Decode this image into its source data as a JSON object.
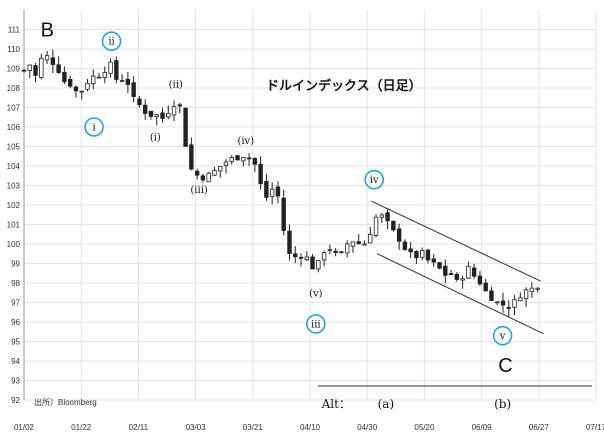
{
  "chart_data": {
    "type": "candlestick",
    "title": "ドルインデックス（日足）",
    "source_note": "出所）Bloomberg",
    "xlabel": "",
    "ylabel": "",
    "ylim": [
      92,
      112
    ],
    "yticks": [
      92,
      93,
      94,
      95,
      96,
      97,
      98,
      99,
      100,
      101,
      102,
      103,
      104,
      105,
      106,
      107,
      108,
      109,
      110,
      111
    ],
    "xticks": [
      "01/02",
      "01/22",
      "02/11",
      "03/03",
      "03/21",
      "04/10",
      "04/30",
      "05/20",
      "06/09",
      "06/27",
      "07/17"
    ],
    "grid": true,
    "close_path": [
      [
        0,
        108.9
      ],
      [
        2,
        109.2
      ],
      [
        4,
        108.6
      ],
      [
        6,
        109.5
      ],
      [
        8,
        109.6
      ],
      [
        10,
        109.3
      ],
      [
        12,
        108.9
      ],
      [
        14,
        108.3
      ],
      [
        16,
        108.2
      ],
      [
        18,
        107.8
      ],
      [
        20,
        107.9
      ],
      [
        22,
        108.4
      ],
      [
        24,
        108.6
      ],
      [
        26,
        108.7
      ],
      [
        28,
        109.0
      ],
      [
        30,
        109.2
      ],
      [
        32,
        108.3
      ],
      [
        34,
        108.5
      ],
      [
        36,
        108.2
      ],
      [
        38,
        107.2
      ],
      [
        40,
        107.1
      ],
      [
        42,
        106.7
      ],
      [
        44,
        106.6
      ],
      [
        46,
        106.6
      ],
      [
        48,
        106.4
      ],
      [
        50,
        107.0
      ],
      [
        52,
        107.3
      ],
      [
        54,
        106.9
      ],
      [
        56,
        104.3
      ],
      [
        58,
        103.6
      ],
      [
        60,
        103.5
      ],
      [
        62,
        103.4
      ],
      [
        64,
        103.6
      ],
      [
        66,
        103.8
      ],
      [
        68,
        104.1
      ],
      [
        70,
        104.3
      ],
      [
        72,
        104.4
      ],
      [
        74,
        104.5
      ],
      [
        76,
        104.6
      ],
      [
        78,
        104.3
      ],
      [
        80,
        103.9
      ],
      [
        82,
        102.3
      ],
      [
        84,
        102.5
      ],
      [
        86,
        103.1
      ],
      [
        88,
        101.8
      ],
      [
        90,
        99.6
      ],
      [
        92,
        99.3
      ],
      [
        94,
        99.4
      ],
      [
        96,
        99.5
      ],
      [
        98,
        99.0
      ],
      [
        100,
        98.6
      ],
      [
        102,
        99.5
      ],
      [
        104,
        99.9
      ],
      [
        106,
        99.6
      ],
      [
        108,
        99.2
      ],
      [
        110,
        99.9
      ],
      [
        112,
        100.2
      ],
      [
        114,
        100.1
      ],
      [
        116,
        99.9
      ],
      [
        118,
        100.3
      ],
      [
        120,
        101.3
      ],
      [
        122,
        101.5
      ],
      [
        124,
        101.2
      ],
      [
        126,
        100.7
      ],
      [
        128,
        100.4
      ],
      [
        130,
        99.9
      ],
      [
        132,
        99.5
      ],
      [
        134,
        99.3
      ],
      [
        136,
        99.6
      ],
      [
        138,
        99.2
      ],
      [
        140,
        99.0
      ],
      [
        142,
        98.8
      ],
      [
        144,
        98.4
      ],
      [
        146,
        98.6
      ],
      [
        148,
        98.0
      ],
      [
        150,
        98.3
      ],
      [
        152,
        98.8
      ],
      [
        154,
        98.4
      ],
      [
        156,
        98.1
      ],
      [
        158,
        97.6
      ],
      [
        160,
        97.3
      ],
      [
        162,
        97.0
      ],
      [
        164,
        96.9
      ],
      [
        166,
        96.8
      ],
      [
        168,
        97.0
      ],
      [
        170,
        97.4
      ],
      [
        172,
        97.6
      ],
      [
        174,
        97.7
      ],
      [
        176,
        97.9
      ]
    ],
    "candle_count": 90,
    "wave_labels": [
      {
        "text": "B",
        "day": 8,
        "price": 111.0,
        "style": "big"
      },
      {
        "text": "ii",
        "day": 30,
        "price": 110.4,
        "style": "circle"
      },
      {
        "text": "i",
        "day": 24,
        "price": 106.0,
        "style": "circle"
      },
      {
        "text": "(i)",
        "day": 45,
        "price": 105.5,
        "style": "paren"
      },
      {
        "text": "(ii)",
        "day": 52,
        "price": 108.2,
        "style": "paren"
      },
      {
        "text": "(iii)",
        "day": 60,
        "price": 102.8,
        "style": "paren"
      },
      {
        "text": "(iv)",
        "day": 76,
        "price": 105.3,
        "style": "paren"
      },
      {
        "text": "(v)",
        "day": 100,
        "price": 97.5,
        "style": "paren"
      },
      {
        "text": "iii",
        "day": 100,
        "price": 95.9,
        "style": "circle"
      },
      {
        "text": "iv",
        "day": 120,
        "price": 103.3,
        "style": "circle"
      },
      {
        "text": "v",
        "day": 164,
        "price": 95.3,
        "style": "circle"
      },
      {
        "text": "C",
        "day": 165,
        "price": 93.8,
        "style": "big"
      }
    ],
    "channel_lines": [
      {
        "from": [
          119,
          102.2
        ],
        "to": [
          177,
          98.1
        ]
      },
      {
        "from": [
          121,
          99.5
        ],
        "to": [
          178,
          95.4
        ]
      }
    ],
    "alt_labels": [
      {
        "text": "Alt：",
        "day": 107
      },
      {
        "text": "(a)",
        "day": 124
      },
      {
        "text": "(b)",
        "day": 164
      }
    ]
  }
}
